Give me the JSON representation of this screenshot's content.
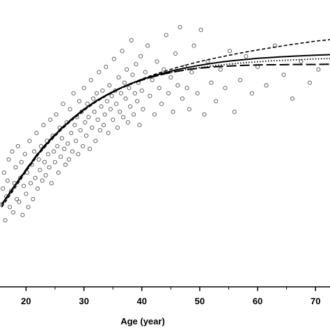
{
  "chart_data": {
    "type": "scatter",
    "title": "",
    "xlabel": "Age (year)",
    "ylabel": "",
    "xlim": [
      15.5,
      72.5
    ],
    "ylim": [
      0,
      100
    ],
    "xticks": [
      20,
      30,
      40,
      50,
      60,
      70
    ],
    "xtick_labels": [
      "20",
      "30",
      "40",
      "50",
      "60",
      "70"
    ],
    "grid": false,
    "legend": "none",
    "marker": "open-circle",
    "colors": {
      "points": "#555555",
      "lines": "#000000",
      "axis": "#000000"
    },
    "points": [
      [
        15.8,
        28
      ],
      [
        16.0,
        34
      ],
      [
        16.2,
        40
      ],
      [
        16.4,
        22
      ],
      [
        16.6,
        31
      ],
      [
        16.8,
        37
      ],
      [
        17.0,
        45
      ],
      [
        17.2,
        27
      ],
      [
        17.4,
        33
      ],
      [
        17.6,
        48
      ],
      [
        17.8,
        25
      ],
      [
        18.0,
        36
      ],
      [
        18.2,
        42
      ],
      [
        18.4,
        30
      ],
      [
        18.6,
        50
      ],
      [
        18.8,
        29
      ],
      [
        19.0,
        38
      ],
      [
        19.2,
        44
      ],
      [
        19.4,
        24
      ],
      [
        19.6,
        35
      ],
      [
        19.8,
        47
      ],
      [
        20.0,
        32
      ],
      [
        20.2,
        40
      ],
      [
        20.4,
        27
      ],
      [
        20.6,
        52
      ],
      [
        20.8,
        36
      ],
      [
        21.0,
        43
      ],
      [
        21.2,
        30
      ],
      [
        21.4,
        48
      ],
      [
        21.6,
        38
      ],
      [
        21.8,
        55
      ],
      [
        22.0,
        34
      ],
      [
        22.2,
        45
      ],
      [
        22.4,
        41
      ],
      [
        22.6,
        50
      ],
      [
        22.8,
        37
      ],
      [
        23.0,
        58
      ],
      [
        23.2,
        44
      ],
      [
        23.4,
        39
      ],
      [
        23.6,
        52
      ],
      [
        23.8,
        47
      ],
      [
        24.0,
        42
      ],
      [
        24.2,
        60
      ],
      [
        24.4,
        36
      ],
      [
        24.6,
        54
      ],
      [
        24.8,
        48
      ],
      [
        25.0,
        44
      ],
      [
        25.2,
        62
      ],
      [
        25.4,
        50
      ],
      [
        25.6,
        40
      ],
      [
        25.8,
        57
      ],
      [
        26.0,
        46
      ],
      [
        26.2,
        53
      ],
      [
        26.4,
        66
      ],
      [
        26.6,
        49
      ],
      [
        26.8,
        43
      ],
      [
        27.0,
        59
      ],
      [
        27.2,
        51
      ],
      [
        27.4,
        45
      ],
      [
        27.6,
        64
      ],
      [
        27.8,
        55
      ],
      [
        28.0,
        48
      ],
      [
        28.2,
        70
      ],
      [
        28.4,
        58
      ],
      [
        28.6,
        52
      ],
      [
        28.8,
        61
      ],
      [
        29.0,
        47
      ],
      [
        29.2,
        67
      ],
      [
        29.4,
        56
      ],
      [
        29.6,
        63
      ],
      [
        29.8,
        50
      ],
      [
        30.0,
        72
      ],
      [
        30.2,
        59
      ],
      [
        30.4,
        54
      ],
      [
        30.6,
        66
      ],
      [
        30.8,
        61
      ],
      [
        31.0,
        49
      ],
      [
        31.2,
        75
      ],
      [
        31.4,
        57
      ],
      [
        31.6,
        68
      ],
      [
        31.8,
        63
      ],
      [
        32.0,
        52
      ],
      [
        32.2,
        70
      ],
      [
        32.4,
        60
      ],
      [
        32.6,
        78
      ],
      [
        32.8,
        56
      ],
      [
        33.0,
        65
      ],
      [
        33.2,
        71
      ],
      [
        33.4,
        58
      ],
      [
        33.6,
        62
      ],
      [
        33.8,
        80
      ],
      [
        34.0,
        67
      ],
      [
        34.2,
        55
      ],
      [
        34.4,
        73
      ],
      [
        34.6,
        64
      ],
      [
        34.8,
        69
      ],
      [
        35.0,
        60
      ],
      [
        35.2,
        83
      ],
      [
        35.4,
        71
      ],
      [
        35.6,
        66
      ],
      [
        35.8,
        57
      ],
      [
        36.0,
        76
      ],
      [
        36.2,
        63
      ],
      [
        36.4,
        70
      ],
      [
        36.6,
        86
      ],
      [
        36.8,
        61
      ],
      [
        37.0,
        74
      ],
      [
        37.2,
        68
      ],
      [
        37.4,
        79
      ],
      [
        37.6,
        59
      ],
      [
        37.8,
        72
      ],
      [
        38.0,
        65
      ],
      [
        38.2,
        90
      ],
      [
        38.4,
        77
      ],
      [
        38.6,
        62
      ],
      [
        38.8,
        70
      ],
      [
        39.0,
        81
      ],
      [
        39.2,
        67
      ],
      [
        39.4,
        74
      ],
      [
        39.6,
        58
      ],
      [
        39.8,
        84
      ],
      [
        40.0,
        71
      ],
      [
        40.2,
        64
      ],
      [
        40.6,
        78
      ],
      [
        41.0,
        88
      ],
      [
        41.4,
        69
      ],
      [
        41.8,
        75
      ],
      [
        42.2,
        62
      ],
      [
        42.6,
        82
      ],
      [
        43.0,
        72
      ],
      [
        43.4,
        66
      ],
      [
        43.8,
        79
      ],
      [
        44.2,
        92
      ],
      [
        44.6,
        70
      ],
      [
        45.0,
        76
      ],
      [
        45.4,
        63
      ],
      [
        45.8,
        85
      ],
      [
        46.2,
        73
      ],
      [
        46.6,
        95
      ],
      [
        47.0,
        68
      ],
      [
        47.4,
        80
      ],
      [
        47.8,
        72
      ],
      [
        48.2,
        64
      ],
      [
        48.6,
        78
      ],
      [
        49.0,
        88
      ],
      [
        49.6,
        70
      ],
      [
        50.2,
        94
      ],
      [
        50.8,
        62
      ],
      [
        51.4,
        82
      ],
      [
        52.0,
        74
      ],
      [
        52.8,
        67
      ],
      [
        53.6,
        79
      ],
      [
        54.4,
        72
      ],
      [
        55.2,
        86
      ],
      [
        56.0,
        63
      ],
      [
        57.0,
        75
      ],
      [
        58.0,
        84
      ],
      [
        59.0,
        70
      ],
      [
        60.0,
        80
      ],
      [
        61.5,
        73
      ],
      [
        63.0,
        88
      ],
      [
        64.5,
        77
      ],
      [
        66.0,
        68
      ],
      [
        67.5,
        82
      ],
      [
        69.0,
        74
      ],
      [
        70.5,
        79
      ]
    ],
    "series": [
      {
        "style": "solid",
        "x": [
          15.8,
          18,
          20,
          22,
          24,
          26,
          28,
          30,
          32,
          34,
          36,
          38,
          40,
          42,
          44,
          46,
          48,
          50,
          52,
          54,
          56,
          58,
          60,
          62,
          64,
          66,
          68,
          70,
          72.5
        ],
        "y": [
          28,
          35,
          41,
          47,
          52,
          56.5,
          60.5,
          64,
          67,
          69.5,
          71.7,
          73.6,
          75.2,
          76.6,
          77.8,
          78.9,
          79.8,
          80.6,
          81.3,
          81.9,
          82.4,
          82.8,
          83.2,
          83.5,
          83.8,
          84.0,
          84.2,
          84.4,
          84.6
        ]
      },
      {
        "style": "dashed",
        "x": [
          15.8,
          18,
          20,
          22,
          24,
          26,
          28,
          30,
          32,
          34,
          36,
          38,
          40,
          42,
          44,
          46,
          48,
          50,
          52,
          54,
          56,
          58,
          60,
          62,
          64,
          66,
          68,
          70,
          72.5
        ],
        "y": [
          27,
          34,
          40.5,
          46.5,
          51.5,
          56,
          60,
          63.5,
          66.6,
          69.2,
          71.5,
          73.6,
          75.4,
          77.0,
          78.4,
          79.7,
          80.9,
          82.0,
          83.0,
          83.9,
          84.8,
          85.6,
          86.4,
          87.1,
          87.8,
          88.5,
          89.1,
          89.7,
          90.3
        ]
      },
      {
        "style": "dotted",
        "x": [
          15.8,
          18,
          20,
          22,
          24,
          26,
          28,
          30,
          32,
          34,
          36,
          38,
          40,
          42,
          44,
          46,
          48,
          50,
          52,
          54,
          56,
          58,
          60,
          62,
          64,
          66,
          68,
          70,
          72.5
        ],
        "y": [
          27.5,
          34.5,
          40.8,
          46.8,
          51.8,
          56.2,
          60.2,
          63.8,
          66.8,
          69.3,
          71.5,
          73.4,
          75.0,
          76.3,
          77.4,
          78.3,
          79.1,
          79.7,
          80.3,
          80.8,
          81.2,
          81.6,
          81.9,
          82.2,
          82.4,
          82.6,
          82.8,
          83.0,
          83.1
        ]
      },
      {
        "style": "longdash",
        "x": [
          15.8,
          18,
          20,
          22,
          24,
          26,
          28,
          30,
          32,
          34,
          36,
          38,
          40,
          42,
          44,
          46,
          48,
          50,
          52,
          54,
          56,
          58,
          60,
          62,
          64,
          66,
          68,
          70,
          72.5
        ],
        "y": [
          28,
          35,
          41.2,
          47.2,
          52.2,
          56.6,
          60.5,
          63.9,
          66.9,
          69.4,
          71.6,
          73.4,
          75.0,
          76.3,
          77.4,
          78.3,
          79.0,
          79.5,
          79.9,
          80.2,
          80.4,
          80.6,
          80.7,
          80.8,
          80.8,
          80.9,
          80.9,
          80.9,
          81.0
        ]
      }
    ]
  }
}
